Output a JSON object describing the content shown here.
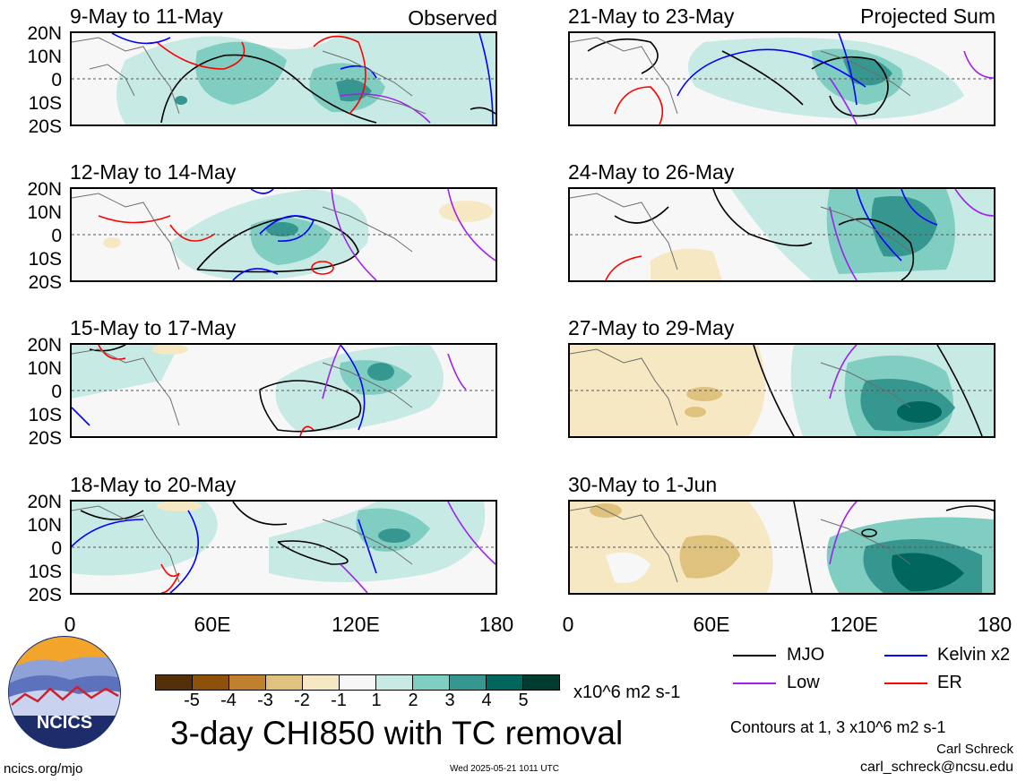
{
  "panels": [
    {
      "id": "p1",
      "title": "9-May to 11-May",
      "right_label": "Observed"
    },
    {
      "id": "p2",
      "title": "21-May to 23-May",
      "right_label": "Projected Sum"
    },
    {
      "id": "p3",
      "title": "12-May to 14-May",
      "right_label": ""
    },
    {
      "id": "p4",
      "title": "24-May to 26-May",
      "right_label": ""
    },
    {
      "id": "p5",
      "title": "15-May to 17-May",
      "right_label": ""
    },
    {
      "id": "p6",
      "title": "27-May to 29-May",
      "right_label": ""
    },
    {
      "id": "p7",
      "title": "18-May to 20-May",
      "right_label": ""
    },
    {
      "id": "p8",
      "title": "30-May to 1-Jun",
      "right_label": ""
    }
  ],
  "lat_labels": [
    "20N",
    "10N",
    "0",
    "10S",
    "20S"
  ],
  "lon_labels": [
    "0",
    "60E",
    "120E",
    "180"
  ],
  "colorbar": {
    "ticks": [
      "-5",
      "-4",
      "-3",
      "-2",
      "-1",
      "1",
      "2",
      "3",
      "4",
      "5"
    ],
    "colors": [
      "#54300a",
      "#8c520a",
      "#bf812d",
      "#dfc27d",
      "#f6e8c3",
      "#f7f7f7",
      "#c7eae5",
      "#80cdc1",
      "#35978f",
      "#01665e",
      "#003c30"
    ],
    "units": "x10^6 m2 s-1"
  },
  "legend": {
    "mjo": {
      "label": "MJO",
      "color": "#000000"
    },
    "kelvin": {
      "label": "Kelvin x2",
      "color": "#0000ff"
    },
    "low": {
      "label": "Low",
      "color": "#a020f0"
    },
    "er": {
      "label": "ER",
      "color": "#ff0000"
    }
  },
  "main_title": "3-day CHI850 with TC removal",
  "contour_note": "Contours at 1, 3 x10^6 m2 s-1",
  "author": "Carl Schreck",
  "email": "carl_schreck@ncsu.edu",
  "url": "ncics.org/mjo",
  "timestamp": "Wed 2025-05-21 1011 UTC",
  "logo_text": "NCICS"
}
